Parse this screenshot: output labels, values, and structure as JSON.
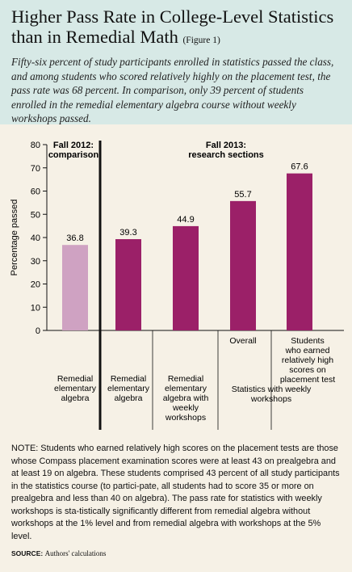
{
  "header": {
    "title_line1": "Higher Pass Rate in College-Level Statistics",
    "title_line2": "than in Remedial Math",
    "figure_label": "(Figure 1)",
    "subtitle": "Fifty-six percent of study participants enrolled in statistics passed the class, and among students who scored relatively highly on the placement test, the pass rate was 68 percent. In comparison, only 39 percent of students enrolled in the remedial elementary algebra course without weekly workshops passed."
  },
  "chart_data": {
    "type": "bar",
    "ylabel": "Percentage passed",
    "ylim": [
      0,
      80
    ],
    "yticks": [
      0,
      10,
      20,
      30,
      40,
      50,
      60,
      70,
      80
    ],
    "group_labels": {
      "comparison": [
        "Fall 2012:",
        "comparison"
      ],
      "research": [
        "Fall 2013:",
        "research sections"
      ]
    },
    "bars": [
      {
        "category": [
          "Remedial",
          "elementary",
          "algebra"
        ],
        "value": 36.8,
        "label": "36.8",
        "group": "comparison",
        "color": "#cfa2c2"
      },
      {
        "category": [
          "Remedial",
          "elementary",
          "algebra"
        ],
        "value": 39.3,
        "label": "39.3",
        "group": "research",
        "color": "#9b2068"
      },
      {
        "category": [
          "Remedial",
          "elementary",
          "algebra with",
          "weekly",
          "workshops"
        ],
        "value": 44.9,
        "label": "44.9",
        "group": "research",
        "color": "#9b2068"
      },
      {
        "category": [
          "Overall"
        ],
        "value": 55.7,
        "label": "55.7",
        "group": "research",
        "color": "#9b2068"
      },
      {
        "category": [
          "Students",
          "who earned",
          "relatively high",
          "scores on",
          "placement test"
        ],
        "value": 67.6,
        "label": "67.6",
        "group": "research",
        "color": "#9b2068"
      }
    ],
    "shared_label": [
      "Statistics with weekly",
      "workshops"
    ],
    "colors": {
      "comparison": "#cfa2c2",
      "research": "#9b2068",
      "divider": "#111111"
    }
  },
  "note": "NOTE: Students who earned relatively high scores on the placement tests are those whose Compass placement examination scores were at least 43 on prealgebra and at least 19 on algebra. These students comprised 43 percent of all study participants in the statistics course (to partici-pate, all students had to score 35 or more on prealgebra and less than 40 on algebra). The pass rate for statistics with weekly workshops is sta-tistically significantly different from remedial algebra without workshops at the 1% level and from remedial algebra with workshops at the 5% level.",
  "source": {
    "label": "SOURCE:",
    "text": "Authors' calculations"
  }
}
